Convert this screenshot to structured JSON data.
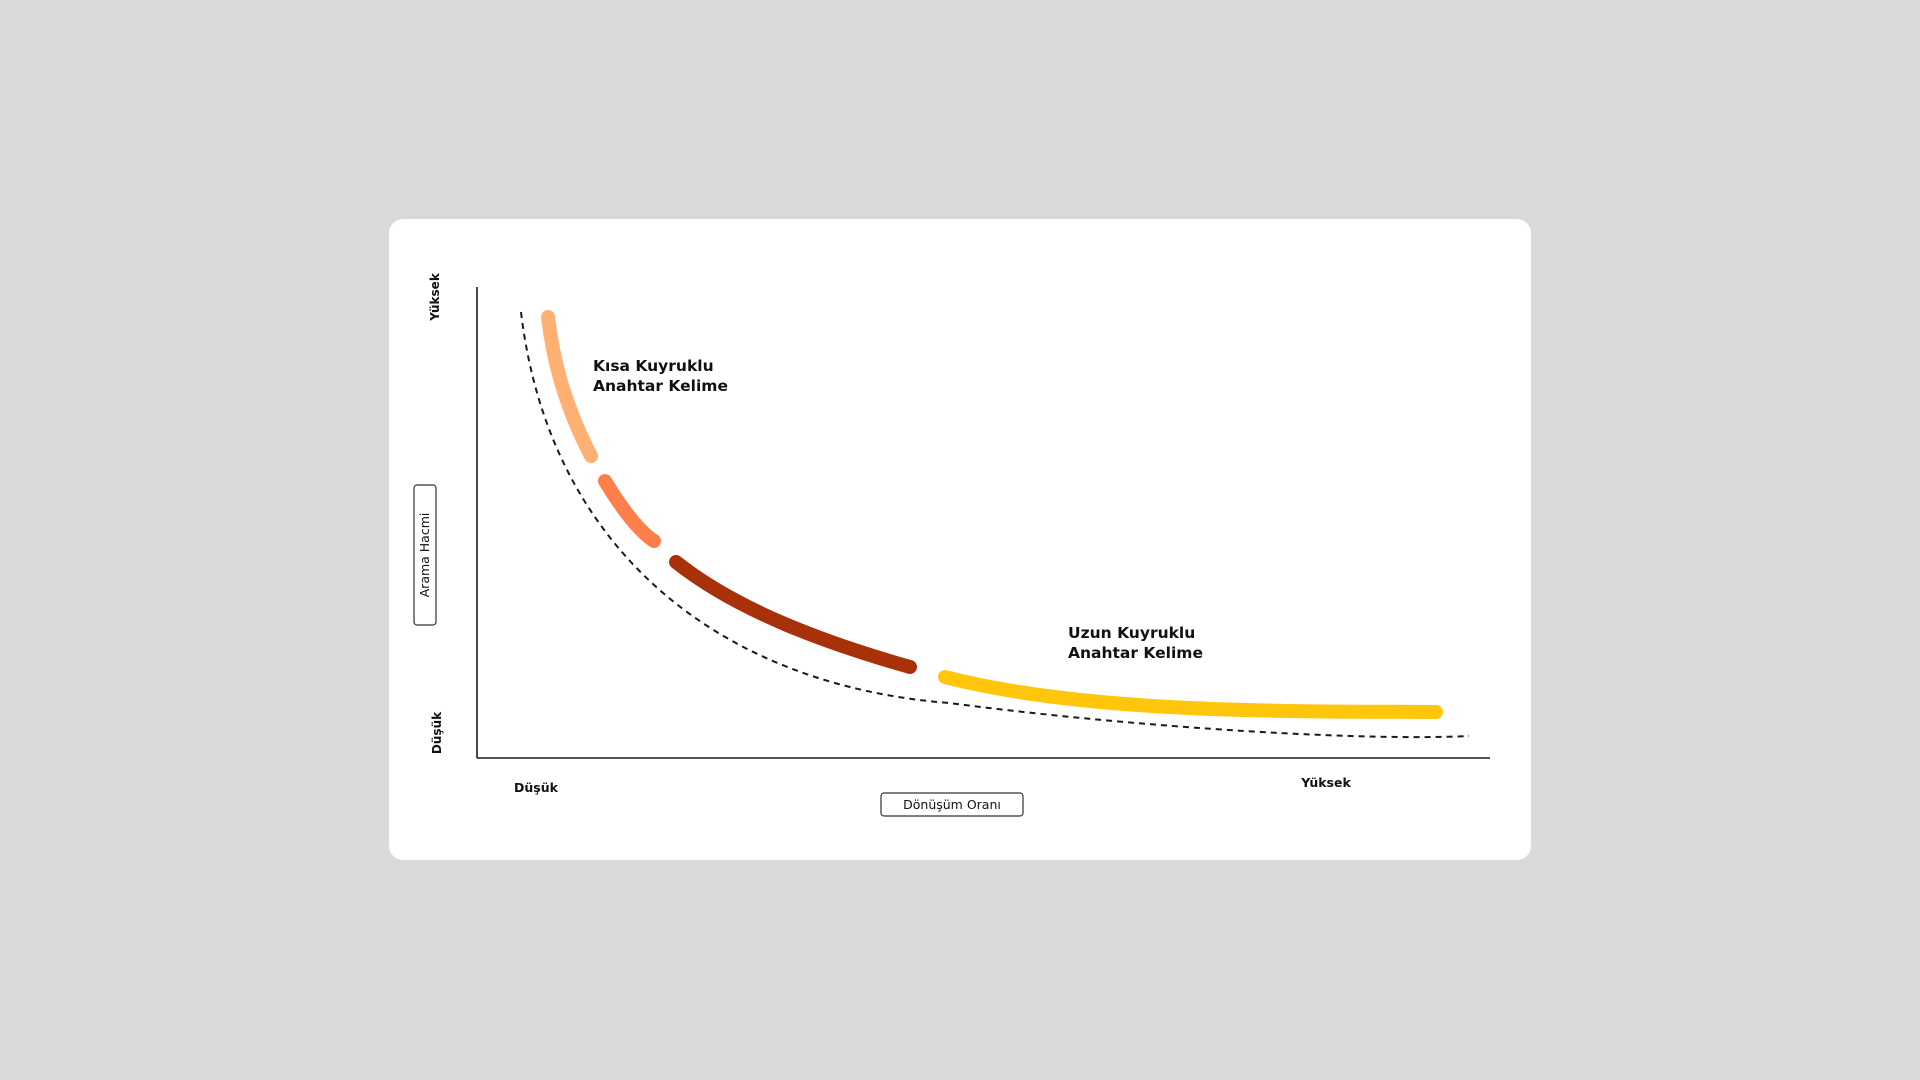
{
  "diagram": {
    "y_axis": {
      "title": "Arama Hacmi",
      "high_label": "Yüksek",
      "low_label": "Düşük"
    },
    "x_axis": {
      "title": "Dönüşüm Oranı",
      "low_label": "Düşük",
      "high_label": "Yüksek"
    },
    "annotations": {
      "short_tail": [
        "Kısa Kuyruklu",
        "Anahtar Kelime"
      ],
      "long_tail": [
        "Uzun Kuyruklu",
        "Anahtar Kelime"
      ]
    },
    "colors": {
      "background": "#d9d9d9",
      "card": "#ffffff",
      "axis": "#1a1a1a",
      "segment_1": "#ffb072",
      "segment_2": "#ff7f4a",
      "segment_3": "#a8310a",
      "segment_4": "#ffc60b"
    }
  }
}
